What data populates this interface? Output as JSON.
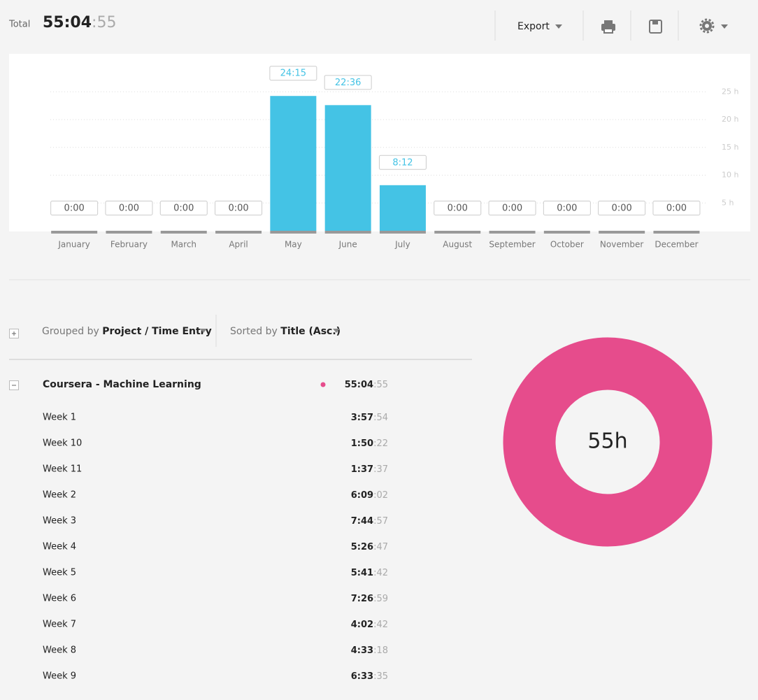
{
  "header": {
    "total_label": "Total",
    "total_main": "55:04",
    "total_seconds": ":55",
    "export": "Export"
  },
  "chart_data": {
    "type": "bar",
    "categories": [
      "January",
      "February",
      "March",
      "April",
      "May",
      "June",
      "July",
      "August",
      "September",
      "October",
      "November",
      "December"
    ],
    "values": [
      0,
      0,
      0,
      0,
      24.25,
      22.6,
      8.2,
      0,
      0,
      0,
      0,
      0
    ],
    "value_labels": [
      "0:00",
      "0:00",
      "0:00",
      "0:00",
      "24:15",
      "22:36",
      "8:12",
      "0:00",
      "0:00",
      "0:00",
      "0:00",
      "0:00"
    ],
    "color": "#44c3e5",
    "ylim": [
      0,
      30
    ],
    "yticks": [
      {
        "value": 5,
        "label": "5 h"
      },
      {
        "value": 10,
        "label": "10 h"
      },
      {
        "value": 15,
        "label": "15 h"
      },
      {
        "value": 20,
        "label": "20 h"
      },
      {
        "value": 25,
        "label": "25 h"
      }
    ],
    "grid": true
  },
  "controls": {
    "grouped_prefix": "Grouped by",
    "grouped_value": "Project / Time Entry",
    "sorted_prefix": "Sorted by",
    "sorted_value": "Title (Asc.)"
  },
  "project": {
    "name": "Coursera - Machine Learning",
    "main": "55:04",
    "seconds": ":55",
    "color": "#e64c8c",
    "entries": [
      {
        "name": "Week 1",
        "main": "3:57",
        "seconds": ":54"
      },
      {
        "name": "Week 10",
        "main": "1:50",
        "seconds": ":22"
      },
      {
        "name": "Week 11",
        "main": "1:37",
        "seconds": ":37"
      },
      {
        "name": "Week 2",
        "main": "6:09",
        "seconds": ":02"
      },
      {
        "name": "Week 3",
        "main": "7:44",
        "seconds": ":57"
      },
      {
        "name": "Week 4",
        "main": "5:26",
        "seconds": ":47"
      },
      {
        "name": "Week 5",
        "main": "5:41",
        "seconds": ":42"
      },
      {
        "name": "Week 6",
        "main": "7:26",
        "seconds": ":59"
      },
      {
        "name": "Week 7",
        "main": "4:02",
        "seconds": ":42"
      },
      {
        "name": "Week 8",
        "main": "4:33",
        "seconds": ":18"
      },
      {
        "name": "Week 9",
        "main": "6:33",
        "seconds": ":35"
      }
    ]
  },
  "donut": {
    "center_label": "55h"
  }
}
